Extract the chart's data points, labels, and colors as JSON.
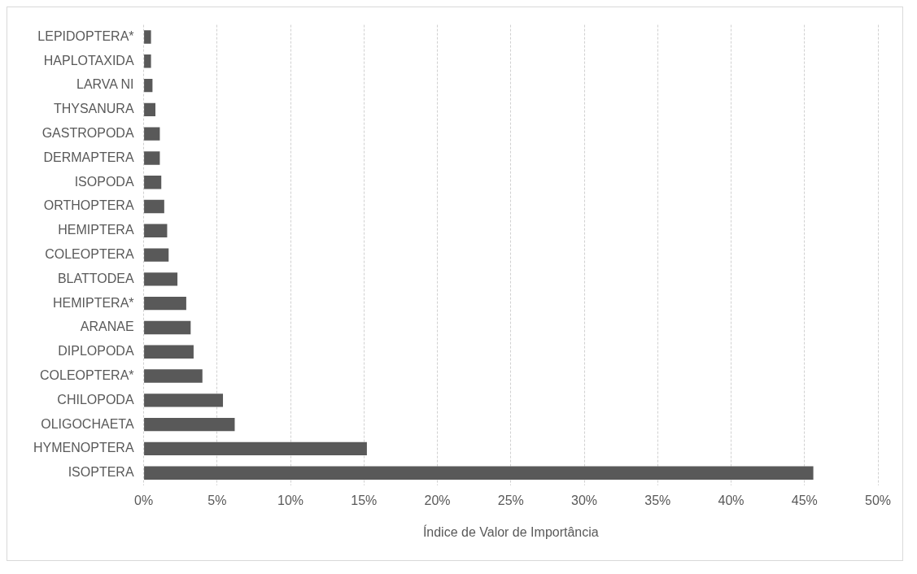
{
  "chart_data": {
    "type": "bar",
    "orientation": "horizontal",
    "xlabel": "Índice de Valor de Importância",
    "categories": [
      "LEPIDOPTERA*",
      "HAPLOTAXIDA",
      "LARVA NI",
      "THYSANURA",
      "GASTROPODA",
      "DERMAPTERA",
      "ISOPODA",
      "ORTHOPTERA",
      "HEMIPTERA",
      "COLEOPTERA",
      "BLATTODEA",
      "HEMIPTERA*",
      "ARANAE",
      "DIPLOPODA",
      "COLEOPTERA*",
      "CHILOPODA",
      "OLIGOCHAETA",
      "HYMENOPTERA",
      "ISOPTERA"
    ],
    "values": [
      0.5,
      0.5,
      0.6,
      0.8,
      1.1,
      1.1,
      1.2,
      1.4,
      1.6,
      1.7,
      2.3,
      2.9,
      3.2,
      3.4,
      4.0,
      5.4,
      6.2,
      15.2,
      45.6
    ],
    "color": "#595959",
    "xlim": [
      0,
      50
    ],
    "xticks": [
      {
        "value": 0,
        "label": "0%"
      },
      {
        "value": 5,
        "label": "5%"
      },
      {
        "value": 10,
        "label": "10%"
      },
      {
        "value": 15,
        "label": "15%"
      },
      {
        "value": 20,
        "label": "20%"
      },
      {
        "value": 25,
        "label": "25%"
      },
      {
        "value": 30,
        "label": "30%"
      },
      {
        "value": 35,
        "label": "35%"
      },
      {
        "value": 40,
        "label": "40%"
      },
      {
        "value": 45,
        "label": "45%"
      },
      {
        "value": 50,
        "label": "50%"
      }
    ],
    "grid": "x",
    "legend": false
  }
}
